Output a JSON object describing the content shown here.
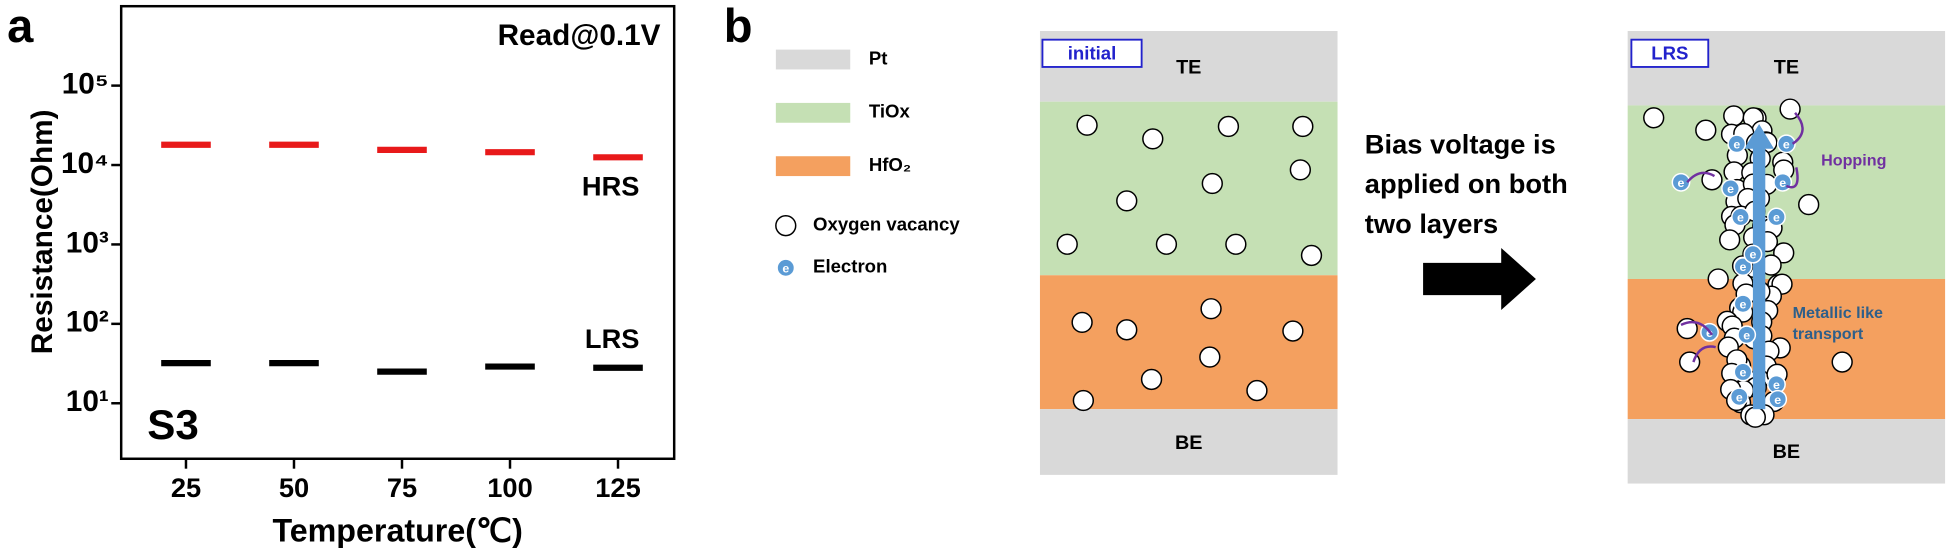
{
  "chart_data": {
    "type": "scatter",
    "panel_label": "a",
    "ylabel": "Resistance(Ohm)",
    "xlabel": "Temperature(℃)",
    "x": [
      25,
      50,
      75,
      100,
      125
    ],
    "series": [
      {
        "name": "HRS",
        "color": "#e8191a",
        "values": [
          18000,
          18000,
          15500,
          14500,
          12500
        ]
      },
      {
        "name": "LRS",
        "color": "#000000",
        "values": [
          32,
          32,
          25,
          29,
          28
        ]
      }
    ],
    "marker": "dash",
    "xlim": [
      10,
      138
    ],
    "xticks": [
      25,
      50,
      75,
      100,
      125
    ],
    "ylim": [
      2,
      1000000
    ],
    "log_y": true,
    "yticks": [
      {
        "value": 10,
        "label": "10¹"
      },
      {
        "value": 100,
        "label": "10²"
      },
      {
        "value": 1000,
        "label": "10³"
      },
      {
        "value": 10000,
        "label": "10⁴"
      },
      {
        "value": 100000,
        "label": "10⁵"
      }
    ],
    "annotations": [
      "Read@0.1V",
      "S3"
    ]
  },
  "panel_b": {
    "label": "b",
    "legend": [
      {
        "label": "Pt",
        "color": "#d9d9d9"
      },
      {
        "label": "TiOx",
        "color": "#c5e0b4"
      },
      {
        "label": "HfO₂",
        "color": "#f4a05f"
      },
      {
        "label": "Oxygen vacancy"
      },
      {
        "label": "Electron"
      }
    ],
    "initial_diagram": {
      "tag": "initial",
      "top": "TE",
      "bottom": "BE"
    },
    "process_text": [
      "Bias voltage is",
      "applied on both",
      "two layers"
    ],
    "final_diagram": {
      "tag": "LRS",
      "top": "TE",
      "bottom": "BE",
      "annotations": [
        "Hopping",
        "Metallic like",
        "transport"
      ]
    },
    "electron_symbol": "e"
  }
}
